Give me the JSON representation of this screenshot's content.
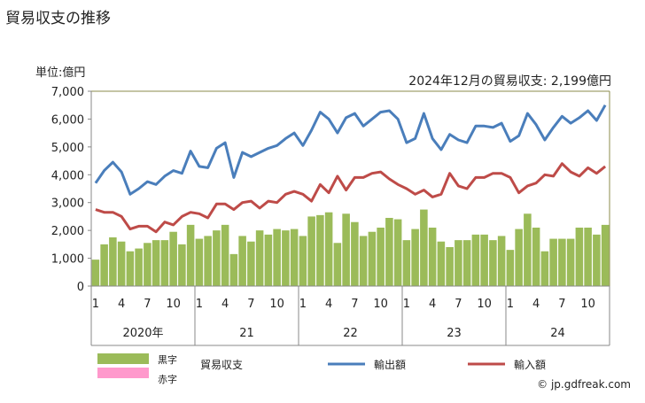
{
  "chart_data": {
    "type": "bar+line",
    "title": "貿易収支の推移",
    "unit_label": "単位:億円",
    "annotation": "2024年12月の貿易収支: 2,199億円",
    "ylim": [
      0,
      7000
    ],
    "yticks": [
      "0",
      "1,000",
      "2,000",
      "3,000",
      "4,000",
      "5,000",
      "6,000",
      "7,000"
    ],
    "month_ticks": [
      "1",
      "4",
      "7",
      "10"
    ],
    "year_labels": [
      "2020年",
      "21",
      "22",
      "23",
      "24"
    ],
    "series": [
      {
        "name": "貿易収支",
        "type": "bar",
        "color": "#9bbb59",
        "values": [
          950,
          1500,
          1750,
          1600,
          1250,
          1350,
          1550,
          1650,
          1650,
          1950,
          1500,
          2200,
          1700,
          1800,
          2000,
          2200,
          1150,
          1800,
          1600,
          2000,
          1850,
          2050,
          2000,
          2050,
          1800,
          2500,
          2550,
          2650,
          1550,
          2600,
          2300,
          1800,
          1950,
          2100,
          2450,
          2400,
          1650,
          2050,
          2750,
          2100,
          1600,
          1400,
          1650,
          1650,
          1850,
          1850,
          1650,
          1800,
          1300,
          2050,
          2600,
          2100,
          1250,
          1700,
          1700,
          1700,
          2100,
          2100,
          1850,
          2199
        ]
      },
      {
        "name": "輸出額",
        "type": "line",
        "color": "#4a7ebb",
        "values": [
          3700,
          4150,
          4450,
          4100,
          3300,
          3500,
          3750,
          3650,
          3950,
          4150,
          4050,
          4850,
          4300,
          4250,
          4950,
          5150,
          3900,
          4800,
          4650,
          4800,
          4950,
          5050,
          5300,
          5500,
          5050,
          5600,
          6250,
          6000,
          5500,
          6050,
          6200,
          5750,
          6000,
          6250,
          6300,
          6000,
          5150,
          5300,
          6200,
          5300,
          4900,
          5450,
          5250,
          5150,
          5750,
          5750,
          5700,
          5850,
          5200,
          5400,
          6200,
          5800,
          5250,
          5700,
          6100,
          5850,
          6050,
          6300,
          5950,
          6500
        ]
      },
      {
        "name": "輸入額",
        "type": "line",
        "color": "#be4b48",
        "values": [
          2750,
          2650,
          2650,
          2500,
          2050,
          2150,
          2150,
          1950,
          2300,
          2200,
          2500,
          2650,
          2600,
          2450,
          2950,
          2950,
          2750,
          3000,
          3050,
          2800,
          3050,
          3000,
          3300,
          3400,
          3300,
          3050,
          3650,
          3350,
          3950,
          3450,
          3900,
          3900,
          4050,
          4100,
          3850,
          3650,
          3500,
          3300,
          3450,
          3200,
          3300,
          4050,
          3600,
          3500,
          3900,
          3900,
          4050,
          4050,
          3900,
          3350,
          3600,
          3700,
          4000,
          3950,
          4400,
          4100,
          3950,
          4250,
          4050,
          4300
        ]
      }
    ],
    "legend": {
      "surplus": "黒字",
      "deficit": "赤字",
      "surplus_color": "#9bbb59",
      "deficit_color": "#ff99cc",
      "bar_label": "貿易収支",
      "export_label": "輸出額",
      "import_label": "輸入額"
    },
    "legend_placement": "bottom"
  },
  "credit": "© jp.gdfreak.com"
}
